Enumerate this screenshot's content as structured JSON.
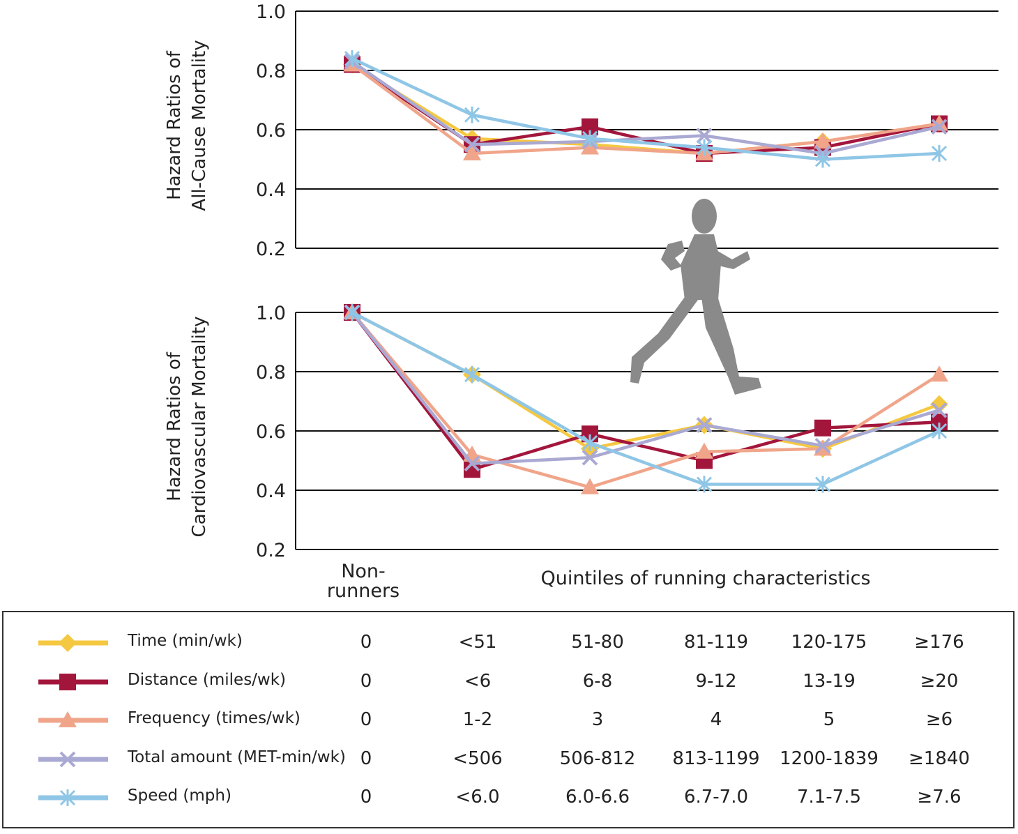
{
  "colors": {
    "time": "#f5c842",
    "distance": "#a3163c",
    "frequency": "#f0a58a",
    "total": "#a9a9d3",
    "speed": "#8fc6e6",
    "runner": "#8a8a8a"
  },
  "chart_data": [
    {
      "type": "line",
      "ylabel": [
        "Hazard Ratios of",
        "All-Cause Mortality"
      ],
      "ylim": [
        0.2,
        1.0
      ],
      "yticks": [
        "1.0",
        "0.8",
        "0.6",
        "0.4",
        "0.2"
      ],
      "grid": true,
      "series": [
        {
          "name": "Time (min/wk)",
          "values": [
            0.82,
            0.57,
            0.55,
            0.52,
            0.56,
            0.62
          ]
        },
        {
          "name": "Distance (miles/wk)",
          "values": [
            0.82,
            0.55,
            0.61,
            0.52,
            0.54,
            0.62
          ]
        },
        {
          "name": "Frequency (times/wk)",
          "values": [
            0.82,
            0.52,
            0.54,
            0.52,
            0.56,
            0.62
          ]
        },
        {
          "name": "Total amount (MET-min/wk)",
          "values": [
            0.83,
            0.55,
            0.56,
            0.58,
            0.52,
            0.61
          ]
        },
        {
          "name": "Speed (mph)",
          "values": [
            0.84,
            0.65,
            0.57,
            0.54,
            0.5,
            0.52
          ]
        }
      ]
    },
    {
      "type": "line",
      "ylabel": [
        "Hazard Ratios of",
        "Cardiovascular Mortality"
      ],
      "ylim": [
        0.2,
        1.0
      ],
      "yticks": [
        "1.0",
        "0.8",
        "0.6",
        "0.4",
        "0.2"
      ],
      "grid": true,
      "series": [
        {
          "name": "Time (min/wk)",
          "values": [
            1.0,
            0.79,
            0.54,
            0.62,
            0.54,
            0.69
          ]
        },
        {
          "name": "Distance (miles/wk)",
          "values": [
            1.0,
            0.47,
            0.59,
            0.5,
            0.61,
            0.63
          ]
        },
        {
          "name": "Frequency (times/wk)",
          "values": [
            1.0,
            0.52,
            0.41,
            0.53,
            0.54,
            0.79
          ]
        },
        {
          "name": "Total amount (MET-min/wk)",
          "values": [
            1.0,
            0.49,
            0.51,
            0.62,
            0.55,
            0.67
          ]
        },
        {
          "name": "Speed (mph)",
          "values": [
            1.0,
            0.79,
            0.56,
            0.42,
            0.42,
            0.6
          ]
        }
      ]
    }
  ],
  "x_labels": {
    "nonrunners": [
      "Non-",
      "runners"
    ],
    "quintiles": "Quintiles of running characteristics"
  },
  "legend": [
    {
      "key": "time",
      "marker": "diamond",
      "label": "Time (min/wk)",
      "values": [
        "0",
        "<51",
        "51-80",
        "81-119",
        "120-175",
        "≥176"
      ]
    },
    {
      "key": "distance",
      "marker": "square",
      "label": "Distance (miles/wk)",
      "values": [
        "0",
        "<6",
        "6-8",
        "9-12",
        "13-19",
        "≥20"
      ]
    },
    {
      "key": "frequency",
      "marker": "triangle",
      "label": "Frequency (times/wk)",
      "values": [
        "0",
        "1-2",
        "3",
        "4",
        "5",
        "≥6"
      ]
    },
    {
      "key": "total",
      "marker": "x",
      "label": "Total amount (MET-min/wk)",
      "values": [
        "0",
        "<506",
        "506-812",
        "813-1199",
        "1200-1839",
        "≥1840"
      ]
    },
    {
      "key": "speed",
      "marker": "asterisk",
      "label": "Speed (mph)",
      "values": [
        "0",
        "<6.0",
        "6.0-6.6",
        "6.7-7.0",
        "7.1-7.5",
        "≥7.6"
      ]
    }
  ]
}
